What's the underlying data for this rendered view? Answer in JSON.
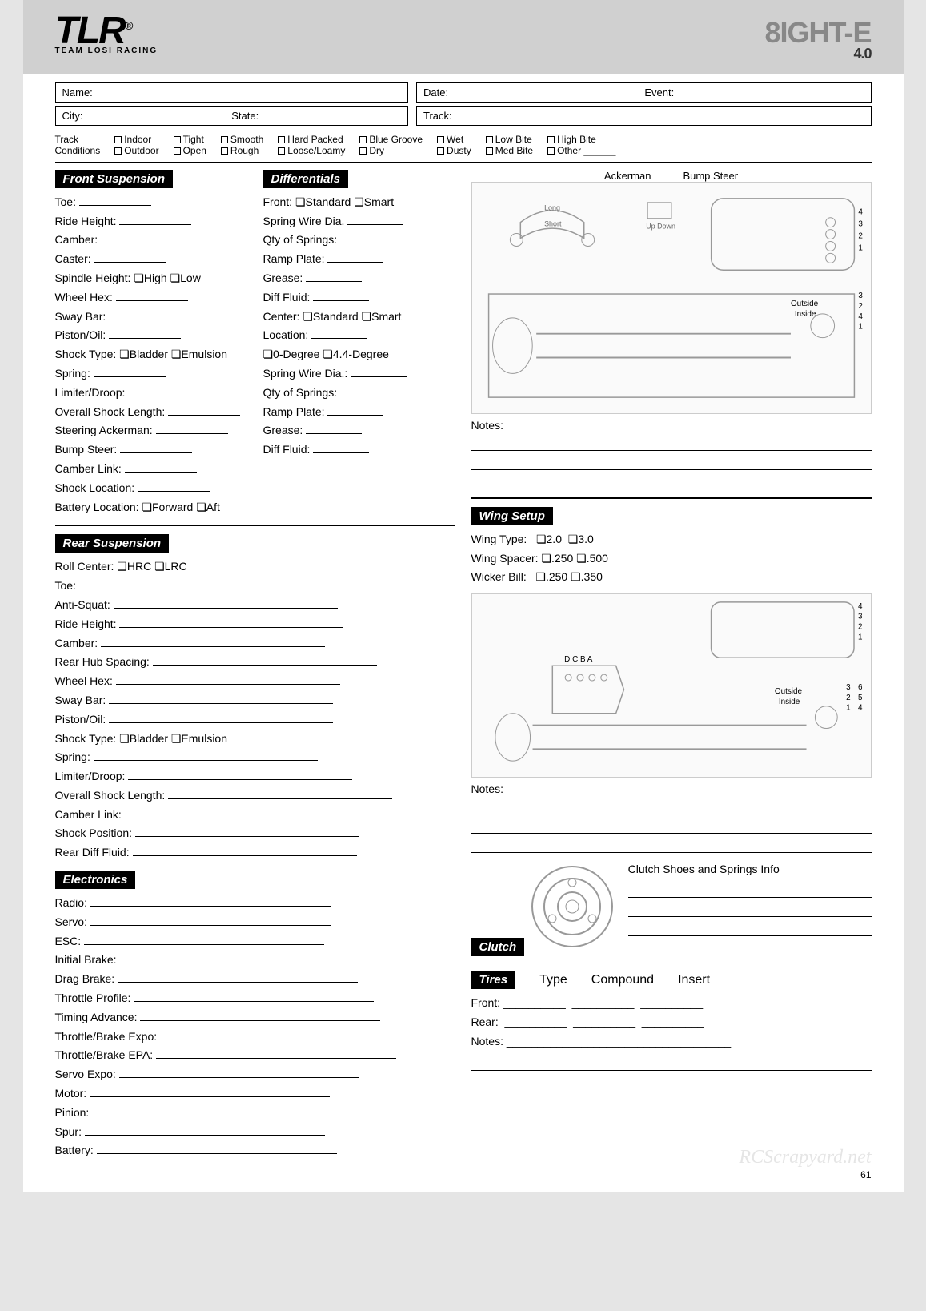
{
  "header": {
    "logo_main": "TLR",
    "logo_sub": "TEAM LOSI RACING",
    "logo_reg": "®",
    "product": "8IGHT-E",
    "version": "4.0"
  },
  "info": {
    "name_lbl": "Name:",
    "date_lbl": "Date:",
    "event_lbl": "Event:",
    "city_lbl": "City:",
    "state_lbl": "State:",
    "track_lbl": "Track:"
  },
  "track_conditions": {
    "label": "Track\nConditions",
    "opts_col1": [
      "Indoor",
      "Outdoor"
    ],
    "opts_col2": [
      "Tight",
      "Open"
    ],
    "opts_col3": [
      "Smooth",
      "Rough"
    ],
    "opts_col4": [
      "Hard Packed",
      "Loose/Loamy"
    ],
    "opts_col5": [
      "Blue Groove",
      "Dry"
    ],
    "opts_col6": [
      "Wet",
      "Dusty"
    ],
    "opts_col7": [
      "Low Bite",
      "Med Bite"
    ],
    "opts_col8": [
      "High Bite",
      "Other"
    ]
  },
  "front_suspension": {
    "title": "Front Suspension",
    "fields": [
      "Toe:",
      "Ride Height:",
      "Camber:",
      "Caster:",
      "Spindle Height:  ❏High  ❏Low",
      "Wheel Hex:",
      "Sway Bar:",
      "Piston/Oil:",
      "Shock Type:  ❏Bladder  ❏Emulsion",
      "Spring:",
      "Limiter/Droop:",
      "Overall Shock Length:",
      "Steering Ackerman:",
      "Bump Steer:",
      "Camber Link:",
      "Shock Location:",
      "Battery Location:  ❏Forward  ❏Aft"
    ]
  },
  "differentials": {
    "title": "Differentials",
    "fields": [
      "Front:  ❏Standard ❏Smart",
      "Spring Wire Dia.",
      "Qty of Springs:",
      "Ramp Plate:",
      "Grease:",
      "Diff Fluid:",
      "",
      "Center:  ❏Standard  ❏Smart",
      "Location:",
      "    ❏0-Degree  ❏4.4-Degree",
      "Spring Wire Dia.:",
      "Qty of Springs:",
      "Ramp Plate:",
      "Grease:",
      "Diff Fluid:"
    ]
  },
  "rear_suspension": {
    "title": "Rear Suspension",
    "fields": [
      "Roll Center:  ❏HRC ❏LRC",
      "Toe:",
      "Anti-Squat:",
      "Ride Height:",
      "Camber:",
      "Rear Hub Spacing:",
      "Wheel Hex:",
      "Sway Bar:",
      "Piston/Oil:",
      "Shock Type:  ❏Bladder  ❏Emulsion",
      "Spring:",
      "Limiter/Droop:",
      "Overall Shock Length:",
      "Camber Link:",
      "Shock Position:",
      "Rear Diff Fluid:"
    ]
  },
  "electronics": {
    "title": "Electronics",
    "fields": [
      "Radio:",
      "Servo:",
      "ESC:",
      "Initial Brake:",
      "Drag Brake:",
      "Throttle Profile:",
      "Timing Advance:",
      "Throttle/Brake Expo:",
      "Throttle/Brake EPA:",
      "Servo Expo:",
      "Motor:",
      "Pinion:",
      "Spur:",
      "Battery:"
    ]
  },
  "diagram_top": {
    "ackerman": "Ackerman",
    "long": "Long",
    "short": "Short",
    "bump_steer": "Bump Steer",
    "up": "Up",
    "down": "Down",
    "outside": "Outside",
    "inside": "Inside",
    "nums_a": [
      "4",
      "3",
      "2",
      "1"
    ],
    "nums_b": [
      "3",
      "2",
      "4",
      "1"
    ]
  },
  "notes_lbl": "Notes:",
  "wing": {
    "title": "Wing Setup",
    "wing_type": "Wing Type:",
    "wt_opts": [
      "2.0",
      "3.0"
    ],
    "wing_spacer": "Wing Spacer:",
    "ws_opts": [
      ".250",
      ".500"
    ],
    "wicker": "Wicker Bill:",
    "wb_opts": [
      ".250",
      ".350"
    ]
  },
  "diagram_rear": {
    "dcba": "D C B A",
    "outside": "Outside",
    "inside": "Inside",
    "nums_a": [
      "4",
      "3",
      "2",
      "1"
    ],
    "nums_b": [
      "6",
      "5",
      "4"
    ],
    "nums_c": [
      "3",
      "2",
      "1"
    ]
  },
  "clutch": {
    "title": "Clutch",
    "info": "Clutch Shoes and Springs Info"
  },
  "tires": {
    "title": "Tires",
    "type": "Type",
    "compound": "Compound",
    "insert": "Insert",
    "front": "Front:",
    "rear": "Rear:",
    "notes": "Notes:"
  },
  "watermark": "RCScrapyard.net",
  "page_num": "61"
}
